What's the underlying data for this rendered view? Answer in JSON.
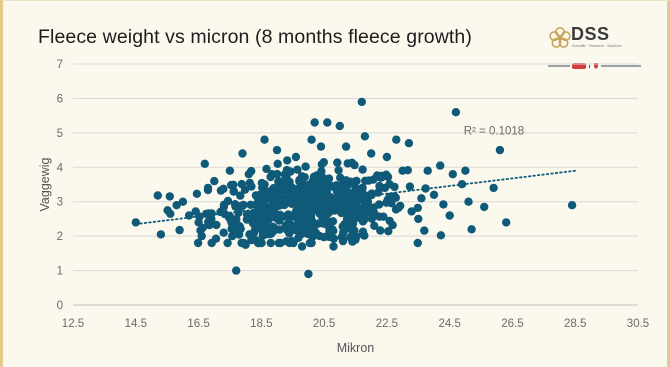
{
  "chart_data": {
    "type": "scatter",
    "title": "Fleece weight vs micron (8 months fleece growth)",
    "xlabel": "Mikron",
    "ylabel": "Vaggewig",
    "xlim": [
      12.5,
      30.5
    ],
    "ylim": [
      0,
      7
    ],
    "x_ticks": [
      "12.5",
      "14.5",
      "16.5",
      "18.5",
      "20.5",
      "22.5",
      "24.5",
      "26.5",
      "28.5",
      "30.5"
    ],
    "y_ticks": [
      "0",
      "1",
      "2",
      "3",
      "4",
      "5",
      "6",
      "7"
    ],
    "grid": "horizontal",
    "marker_color": "#0f5a78",
    "trendline": {
      "style": "dotted",
      "color": "#0f5a78",
      "x_start": 14.5,
      "y_start": 2.35,
      "x_end": 28.5,
      "y_end": 3.9,
      "label": "R² = 0.1018"
    },
    "cluster": {
      "count": 560,
      "x_mean": 20.0,
      "x_sd": 1.55,
      "y_mean": 2.85,
      "y_sd": 0.52
    },
    "points": [
      [
        14.5,
        2.4
      ],
      [
        15.3,
        2.05
      ],
      [
        15.6,
        2.65
      ],
      [
        15.8,
        2.9
      ],
      [
        16.0,
        3.0
      ],
      [
        16.5,
        2.4
      ],
      [
        16.6,
        2.0
      ],
      [
        16.8,
        3.4
      ],
      [
        16.7,
        4.1
      ],
      [
        17.0,
        3.6
      ],
      [
        17.3,
        2.1
      ],
      [
        17.5,
        3.9
      ],
      [
        17.7,
        1.0
      ],
      [
        17.9,
        4.4
      ],
      [
        18.0,
        1.75
      ],
      [
        18.1,
        3.8
      ],
      [
        18.3,
        2.2
      ],
      [
        18.6,
        4.8
      ],
      [
        18.8,
        1.8
      ],
      [
        19.0,
        4.5
      ],
      [
        19.3,
        1.85
      ],
      [
        19.6,
        4.3
      ],
      [
        19.8,
        1.7
      ],
      [
        20.0,
        0.9
      ],
      [
        20.1,
        4.8
      ],
      [
        20.2,
        5.3
      ],
      [
        20.4,
        4.6
      ],
      [
        20.6,
        5.3
      ],
      [
        20.8,
        1.7
      ],
      [
        21.0,
        5.2
      ],
      [
        21.2,
        4.6
      ],
      [
        21.5,
        1.9
      ],
      [
        21.7,
        5.9
      ],
      [
        21.8,
        4.9
      ],
      [
        22.0,
        4.4
      ],
      [
        22.3,
        3.7
      ],
      [
        22.5,
        4.3
      ],
      [
        22.8,
        4.8
      ],
      [
        23.0,
        3.9
      ],
      [
        23.2,
        4.7
      ],
      [
        23.5,
        2.5
      ],
      [
        23.8,
        3.9
      ],
      [
        24.0,
        3.2
      ],
      [
        24.2,
        4.05
      ],
      [
        24.5,
        2.6
      ],
      [
        24.6,
        3.8
      ],
      [
        24.7,
        5.6
      ],
      [
        25.0,
        3.9
      ],
      [
        25.1,
        3.0
      ],
      [
        25.2,
        2.2
      ],
      [
        25.6,
        2.85
      ],
      [
        25.9,
        3.4
      ],
      [
        26.1,
        4.5
      ],
      [
        26.3,
        2.4
      ],
      [
        28.4,
        2.9
      ],
      [
        21.3,
        2.35
      ],
      [
        22.1,
        2.3
      ],
      [
        23.6,
        3.1
      ],
      [
        17.2,
        2.7
      ],
      [
        16.2,
        2.6
      ]
    ]
  },
  "brand": {
    "logo_text": "DSS",
    "logo_tagline": "Scientific · Research · Solutions",
    "accent_color": "#b5a060"
  }
}
